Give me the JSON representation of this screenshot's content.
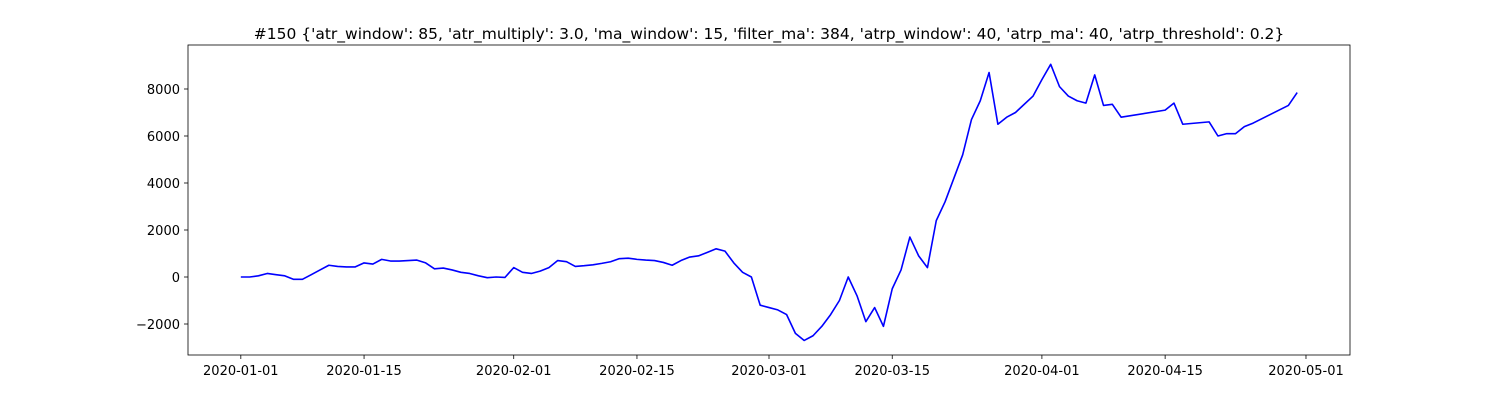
{
  "chart_data": {
    "type": "line",
    "title": "#150 {'atr_window': 85, 'atr_multiply': 3.0, 'ma_window': 15, 'filter_ma': 384, 'atrp_window': 40, 'atrp_ma': 40, 'atrp_threshold': 0.2}",
    "x": [
      "2020-01-01",
      "2020-01-02",
      "2020-01-03",
      "2020-01-04",
      "2020-01-05",
      "2020-01-06",
      "2020-01-07",
      "2020-01-08",
      "2020-01-09",
      "2020-01-10",
      "2020-01-11",
      "2020-01-12",
      "2020-01-13",
      "2020-01-14",
      "2020-01-15",
      "2020-01-16",
      "2020-01-17",
      "2020-01-18",
      "2020-01-19",
      "2020-01-20",
      "2020-01-21",
      "2020-01-22",
      "2020-01-23",
      "2020-01-24",
      "2020-01-25",
      "2020-01-26",
      "2020-01-27",
      "2020-01-28",
      "2020-01-29",
      "2020-01-30",
      "2020-01-31",
      "2020-02-01",
      "2020-02-02",
      "2020-02-03",
      "2020-02-04",
      "2020-02-05",
      "2020-02-06",
      "2020-02-07",
      "2020-02-08",
      "2020-02-09",
      "2020-02-10",
      "2020-02-11",
      "2020-02-12",
      "2020-02-13",
      "2020-02-14",
      "2020-02-15",
      "2020-02-16",
      "2020-02-17",
      "2020-02-18",
      "2020-02-19",
      "2020-02-20",
      "2020-02-21",
      "2020-02-22",
      "2020-02-23",
      "2020-02-24",
      "2020-02-25",
      "2020-02-26",
      "2020-02-27",
      "2020-02-28",
      "2020-02-29",
      "2020-03-01",
      "2020-03-02",
      "2020-03-03",
      "2020-03-04",
      "2020-03-05",
      "2020-03-06",
      "2020-03-07",
      "2020-03-08",
      "2020-03-09",
      "2020-03-10",
      "2020-03-11",
      "2020-03-12",
      "2020-03-13",
      "2020-03-14",
      "2020-03-15",
      "2020-03-16",
      "2020-03-17",
      "2020-03-18",
      "2020-03-19",
      "2020-03-20",
      "2020-03-21",
      "2020-03-22",
      "2020-03-23",
      "2020-03-24",
      "2020-03-25",
      "2020-03-26",
      "2020-03-27",
      "2020-03-28",
      "2020-03-29",
      "2020-03-30",
      "2020-03-31",
      "2020-04-01",
      "2020-04-02",
      "2020-04-03",
      "2020-04-04",
      "2020-04-05",
      "2020-04-06",
      "2020-04-07",
      "2020-04-08",
      "2020-04-09",
      "2020-04-10",
      "2020-04-15",
      "2020-04-16",
      "2020-04-17",
      "2020-04-20",
      "2020-04-21",
      "2020-04-22",
      "2020-04-23",
      "2020-04-24",
      "2020-04-25",
      "2020-04-29",
      "2020-04-30"
    ],
    "series": [
      {
        "color": "#0000ff",
        "values": [
          0,
          0,
          50,
          150,
          100,
          50,
          -100,
          -100,
          100,
          300,
          500,
          450,
          430,
          430,
          600,
          550,
          750,
          680,
          680,
          700,
          720,
          600,
          350,
          380,
          300,
          200,
          150,
          50,
          -30,
          0,
          -20,
          400,
          200,
          150,
          250,
          400,
          700,
          650,
          450,
          480,
          520,
          580,
          650,
          780,
          800,
          750,
          720,
          700,
          620,
          500,
          700,
          850,
          900,
          1050,
          1200,
          1100,
          600,
          200,
          0,
          -1200,
          -1300,
          -1400,
          -1600,
          -2400,
          -2700,
          -2500,
          -2100,
          -1600,
          -1000,
          0,
          -800,
          -1900,
          -1300,
          -2100,
          -500,
          300,
          1700,
          900,
          400,
          2400,
          3200,
          4200,
          5200,
          6700,
          7500,
          8700,
          6500,
          6800,
          7000,
          7350,
          7700,
          8400,
          9050,
          8100,
          7700,
          7500,
          7400,
          8600,
          7300,
          7350,
          6800,
          7100,
          7400,
          6500,
          6600,
          6000,
          6100,
          6100,
          6400,
          6550,
          7300,
          7850
        ]
      }
    ],
    "xlim": [
      "2019-12-26",
      "2020-05-06"
    ],
    "ylim": [
      -3319,
      9872
    ],
    "xticks": [
      "2020-01-01",
      "2020-01-15",
      "2020-02-01",
      "2020-02-15",
      "2020-03-01",
      "2020-03-15",
      "2020-04-01",
      "2020-04-15",
      "2020-05-01"
    ],
    "yticks": [
      {
        "value": -2000,
        "label": "−2000"
      },
      0,
      2000,
      4000,
      6000,
      8000
    ]
  }
}
